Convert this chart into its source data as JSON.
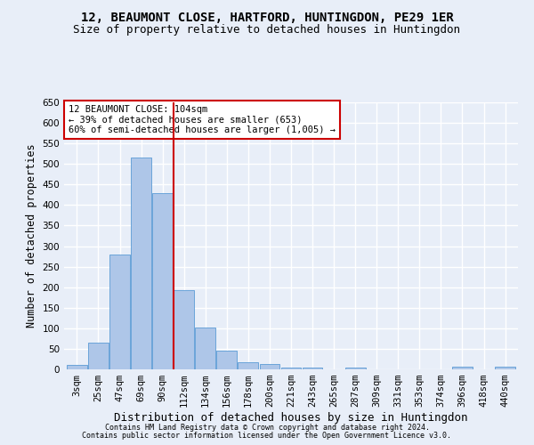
{
  "title1": "12, BEAUMONT CLOSE, HARTFORD, HUNTINGDON, PE29 1ER",
  "title2": "Size of property relative to detached houses in Huntingdon",
  "xlabel": "Distribution of detached houses by size in Huntingdon",
  "ylabel": "Number of detached properties",
  "footnote1": "Contains HM Land Registry data © Crown copyright and database right 2024.",
  "footnote2": "Contains public sector information licensed under the Open Government Licence v3.0.",
  "categories": [
    "3sqm",
    "25sqm",
    "47sqm",
    "69sqm",
    "90sqm",
    "112sqm",
    "134sqm",
    "156sqm",
    "178sqm",
    "200sqm",
    "221sqm",
    "243sqm",
    "265sqm",
    "287sqm",
    "309sqm",
    "331sqm",
    "353sqm",
    "374sqm",
    "396sqm",
    "418sqm",
    "440sqm"
  ],
  "values": [
    10,
    65,
    280,
    515,
    430,
    192,
    102,
    46,
    18,
    12,
    5,
    5,
    0,
    4,
    0,
    0,
    0,
    0,
    6,
    0,
    6
  ],
  "bar_color": "#aec6e8",
  "bar_edge_color": "#5b9bd5",
  "vline_color": "#cc0000",
  "vline_x_index": 4.5,
  "annotation_text": "12 BEAUMONT CLOSE: 104sqm\n← 39% of detached houses are smaller (653)\n60% of semi-detached houses are larger (1,005) →",
  "annotation_box_color": "#ffffff",
  "annotation_box_edge_color": "#cc0000",
  "ylim": [
    0,
    650
  ],
  "yticks": [
    0,
    50,
    100,
    150,
    200,
    250,
    300,
    350,
    400,
    450,
    500,
    550,
    600,
    650
  ],
  "background_color": "#e8eef8",
  "grid_color": "#ffffff",
  "title1_fontsize": 10,
  "title2_fontsize": 9,
  "xlabel_fontsize": 9,
  "ylabel_fontsize": 8.5,
  "tick_fontsize": 7.5,
  "annot_fontsize": 7.5,
  "footnote_fontsize": 6
}
